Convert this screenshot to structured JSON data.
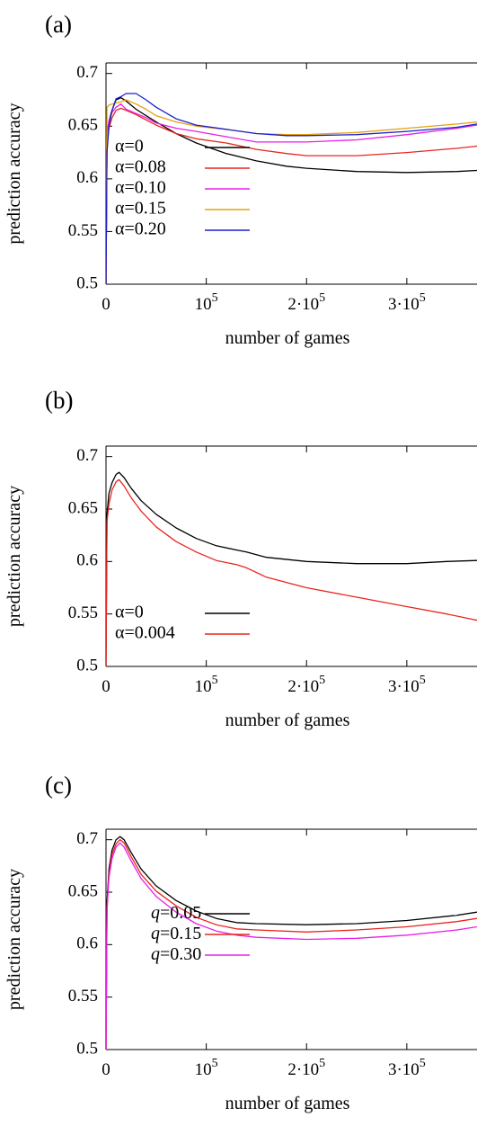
{
  "chart_data": [
    {
      "type": "line",
      "panel_label": "(a)",
      "xlabel": "number of games",
      "ylabel": "prediction accuracy",
      "xlim": [
        0,
        370000
      ],
      "ylim": [
        0.5,
        0.71
      ],
      "x_ticks": [
        {
          "value": 0,
          "label": "0"
        },
        {
          "value": 100000,
          "label": "10",
          "exp": "5"
        },
        {
          "value": 200000,
          "label": "2·10",
          "exp": "5"
        },
        {
          "value": 300000,
          "label": "3·10",
          "exp": "5"
        }
      ],
      "y_ticks": [
        {
          "value": 0.5,
          "label": "0.5"
        },
        {
          "value": 0.55,
          "label": "0.55"
        },
        {
          "value": 0.6,
          "label": "0.6"
        },
        {
          "value": 0.65,
          "label": "0.65"
        },
        {
          "value": 0.7,
          "label": "0.7"
        }
      ],
      "legend_position": "bottom-left",
      "x": [
        0,
        1000,
        3000,
        6000,
        10000,
        15000,
        20000,
        30000,
        40000,
        50000,
        70000,
        90000,
        120000,
        150000,
        180000,
        200000,
        250000,
        300000,
        350000,
        370000
      ],
      "series": [
        {
          "name": "α=0",
          "color": "#000000",
          "values": [
            0.5,
            0.64,
            0.655,
            0.665,
            0.675,
            0.677,
            0.674,
            0.666,
            0.66,
            0.654,
            0.643,
            0.634,
            0.624,
            0.617,
            0.612,
            0.61,
            0.607,
            0.606,
            0.607,
            0.608
          ]
        },
        {
          "name": "α=0.08",
          "color": "#e8261f",
          "values": [
            0.5,
            0.632,
            0.648,
            0.658,
            0.665,
            0.667,
            0.665,
            0.661,
            0.656,
            0.651,
            0.643,
            0.638,
            0.634,
            0.628,
            0.624,
            0.622,
            0.622,
            0.625,
            0.629,
            0.631
          ]
        },
        {
          "name": "α=0.10",
          "color": "#e81ee8",
          "values": [
            0.5,
            0.64,
            0.655,
            0.663,
            0.668,
            0.671,
            0.666,
            0.662,
            0.658,
            0.653,
            0.648,
            0.645,
            0.64,
            0.635,
            0.635,
            0.635,
            0.637,
            0.642,
            0.648,
            0.651
          ]
        },
        {
          "name": "α=0.15",
          "color": "#e3a20e",
          "values": [
            0.5,
            0.668,
            0.67,
            0.671,
            0.672,
            0.673,
            0.675,
            0.671,
            0.666,
            0.66,
            0.654,
            0.65,
            0.647,
            0.643,
            0.642,
            0.642,
            0.644,
            0.648,
            0.652,
            0.654
          ]
        },
        {
          "name": "α=0.20",
          "color": "#1b20c9",
          "values": [
            0.5,
            0.625,
            0.65,
            0.665,
            0.676,
            0.678,
            0.681,
            0.681,
            0.675,
            0.668,
            0.657,
            0.651,
            0.647,
            0.643,
            0.641,
            0.641,
            0.642,
            0.645,
            0.649,
            0.652
          ]
        }
      ]
    },
    {
      "type": "line",
      "panel_label": "(b)",
      "xlabel": "number of games",
      "ylabel": "prediction accuracy",
      "xlim": [
        0,
        370000
      ],
      "ylim": [
        0.5,
        0.71
      ],
      "x_ticks": [
        {
          "value": 0,
          "label": "0"
        },
        {
          "value": 100000,
          "label": "10",
          "exp": "5"
        },
        {
          "value": 200000,
          "label": "2·10",
          "exp": "5"
        },
        {
          "value": 300000,
          "label": "3·10",
          "exp": "5"
        }
      ],
      "y_ticks": [
        {
          "value": 0.5,
          "label": "0.5"
        },
        {
          "value": 0.55,
          "label": "0.55"
        },
        {
          "value": 0.6,
          "label": "0.6"
        },
        {
          "value": 0.65,
          "label": "0.65"
        },
        {
          "value": 0.7,
          "label": "0.7"
        }
      ],
      "legend_position": "bottom-left",
      "x": [
        0,
        1000,
        3000,
        6000,
        10000,
        13000,
        18000,
        25000,
        35000,
        50000,
        70000,
        90000,
        110000,
        130000,
        140000,
        160000,
        200000,
        250000,
        300000,
        340000,
        370000
      ],
      "series": [
        {
          "name": "α=0",
          "color": "#000000",
          "values": [
            0.5,
            0.645,
            0.665,
            0.675,
            0.683,
            0.685,
            0.68,
            0.67,
            0.658,
            0.645,
            0.632,
            0.622,
            0.615,
            0.611,
            0.609,
            0.604,
            0.6,
            0.598,
            0.598,
            0.6,
            0.601
          ]
        },
        {
          "name": "α=0.004",
          "color": "#e8261f",
          "values": [
            0.5,
            0.638,
            0.655,
            0.668,
            0.676,
            0.678,
            0.672,
            0.661,
            0.648,
            0.633,
            0.619,
            0.609,
            0.601,
            0.597,
            0.594,
            0.585,
            0.575,
            0.566,
            0.557,
            0.55,
            0.544
          ]
        }
      ]
    },
    {
      "type": "line",
      "panel_label": "(c)",
      "xlabel": "number of games",
      "ylabel": "prediction accuracy",
      "xlim": [
        0,
        370000
      ],
      "ylim": [
        0.5,
        0.71
      ],
      "x_ticks": [
        {
          "value": 0,
          "label": "0"
        },
        {
          "value": 100000,
          "label": "10",
          "exp": "5"
        },
        {
          "value": 200000,
          "label": "2·10",
          "exp": "5"
        },
        {
          "value": 300000,
          "label": "3·10",
          "exp": "5"
        }
      ],
      "y_ticks": [
        {
          "value": 0.5,
          "label": "0.5"
        },
        {
          "value": 0.55,
          "label": "0.55"
        },
        {
          "value": 0.6,
          "label": "0.6"
        },
        {
          "value": 0.65,
          "label": "0.65"
        },
        {
          "value": 0.7,
          "label": "0.7"
        }
      ],
      "legend_position": "bottom-left",
      "x": [
        0,
        1000,
        3000,
        6000,
        10000,
        14000,
        18000,
        25000,
        35000,
        50000,
        70000,
        90000,
        110000,
        130000,
        150000,
        200000,
        250000,
        300000,
        350000,
        370000
      ],
      "series": [
        {
          "name": "q=0.05",
          "name_var": "q",
          "name_rest": "=0.05",
          "color": "#000000",
          "values": [
            0.5,
            0.64,
            0.672,
            0.69,
            0.7,
            0.703,
            0.7,
            0.688,
            0.672,
            0.656,
            0.642,
            0.632,
            0.625,
            0.621,
            0.62,
            0.619,
            0.62,
            0.623,
            0.628,
            0.631
          ]
        },
        {
          "name": "q=0.15",
          "name_var": "q",
          "name_rest": "=0.15",
          "color": "#e8261f",
          "values": [
            0.5,
            0.636,
            0.668,
            0.686,
            0.696,
            0.7,
            0.697,
            0.684,
            0.667,
            0.651,
            0.637,
            0.626,
            0.619,
            0.615,
            0.614,
            0.612,
            0.614,
            0.617,
            0.622,
            0.625
          ]
        },
        {
          "name": "q=0.30",
          "name_var": "q",
          "name_rest": "=0.30",
          "color": "#e81ee8",
          "values": [
            0.5,
            0.632,
            0.664,
            0.682,
            0.693,
            0.697,
            0.693,
            0.68,
            0.663,
            0.646,
            0.631,
            0.62,
            0.613,
            0.609,
            0.607,
            0.605,
            0.606,
            0.609,
            0.614,
            0.617
          ]
        }
      ]
    }
  ]
}
